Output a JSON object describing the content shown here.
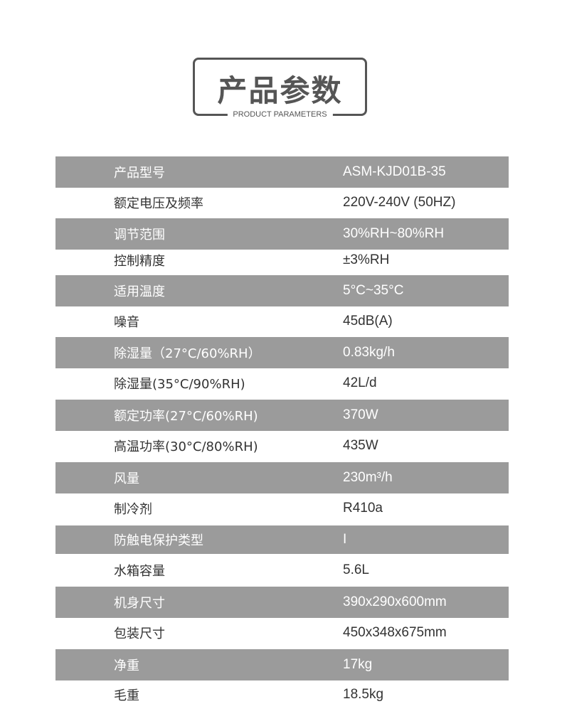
{
  "header": {
    "title": "产品参数",
    "subtitle": "PRODUCT PARAMETERS"
  },
  "colors": {
    "stripe": "#9b9b9b",
    "text": "#333333",
    "title": "#555555"
  },
  "params": [
    {
      "label": "产品型号",
      "value": "ASM-KJD01B-35"
    },
    {
      "label": "额定电压及频率",
      "value": "220V-240V (50HZ)"
    },
    {
      "label": "调节范围",
      "value": "30%RH~80%RH"
    },
    {
      "label": "控制精度",
      "value": "±3%RH"
    },
    {
      "label": "适用温度",
      "value": "5°C~35°C"
    },
    {
      "label": "噪音",
      "value": "45dB(A)"
    },
    {
      "label": "除湿量（27°C/60%RH）",
      "value": "0.83kg/h"
    },
    {
      "label": "除湿量(35°C/90%RH)",
      "value": "42L/d"
    },
    {
      "label": "额定功率(27°C/60%RH)",
      "value": "370W"
    },
    {
      "label": "高温功率(30°C/80%RH)",
      "value": "435W"
    },
    {
      "label": "风量",
      "value": "230m³/h"
    },
    {
      "label": "制冷剂",
      "value": "R410a"
    },
    {
      "label": "防触电保护类型",
      "value": "I"
    },
    {
      "label": "水箱容量",
      "value": "5.6L"
    },
    {
      "label": "机身尺寸",
      "value": "390x290x600mm"
    },
    {
      "label": "包装尺寸",
      "value": "450x348x675mm"
    },
    {
      "label": "净重",
      "value": "17kg"
    },
    {
      "label": "毛重",
      "value": "18.5kg"
    }
  ]
}
